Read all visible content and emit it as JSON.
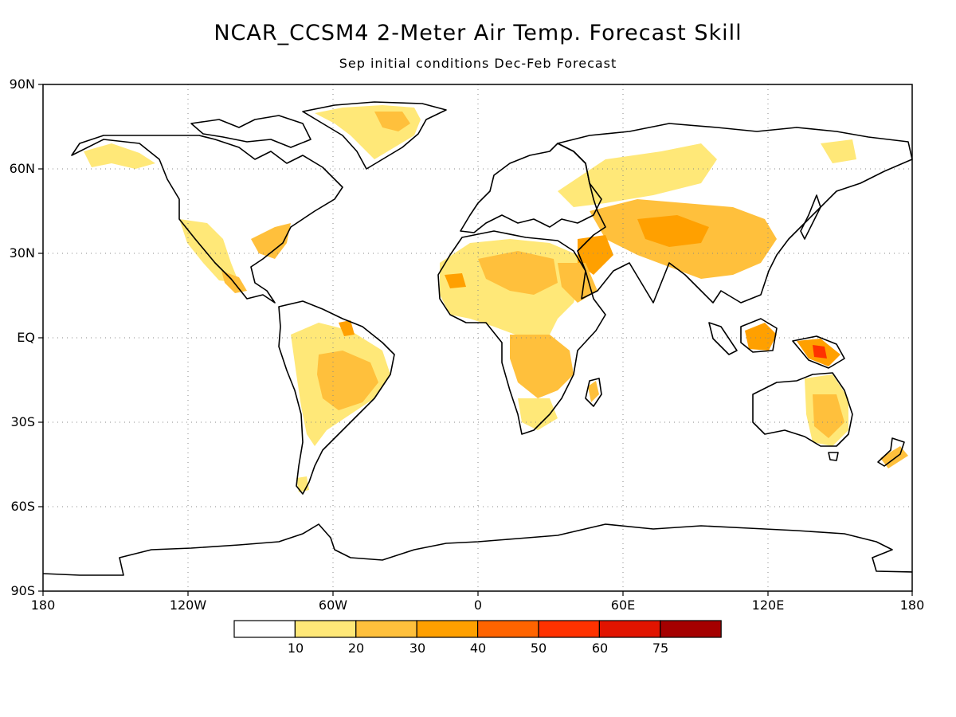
{
  "title": "NCAR_CCSM4 2-Meter Air Temp. Forecast Skill",
  "subtitle": "Sep initial conditions  Dec-Feb Forecast",
  "axes": {
    "y_labels": [
      "90N",
      "60N",
      "30N",
      "EQ",
      "30S",
      "60S",
      "90S"
    ],
    "x_labels": [
      "180",
      "120W",
      "60W",
      "0",
      "60E",
      "120E",
      "180"
    ]
  },
  "colorbar": {
    "levels": [
      "10",
      "20",
      "30",
      "40",
      "50",
      "60",
      "75"
    ],
    "colors": [
      "#ffffff",
      "#ffe878",
      "#ffc03c",
      "#ffa000",
      "#ff6400",
      "#ff3200",
      "#e11400",
      "#a50000"
    ]
  },
  "map_style": {
    "land_outline_color": "#000000",
    "grid_color": "#888888",
    "grid": "dotted"
  }
}
